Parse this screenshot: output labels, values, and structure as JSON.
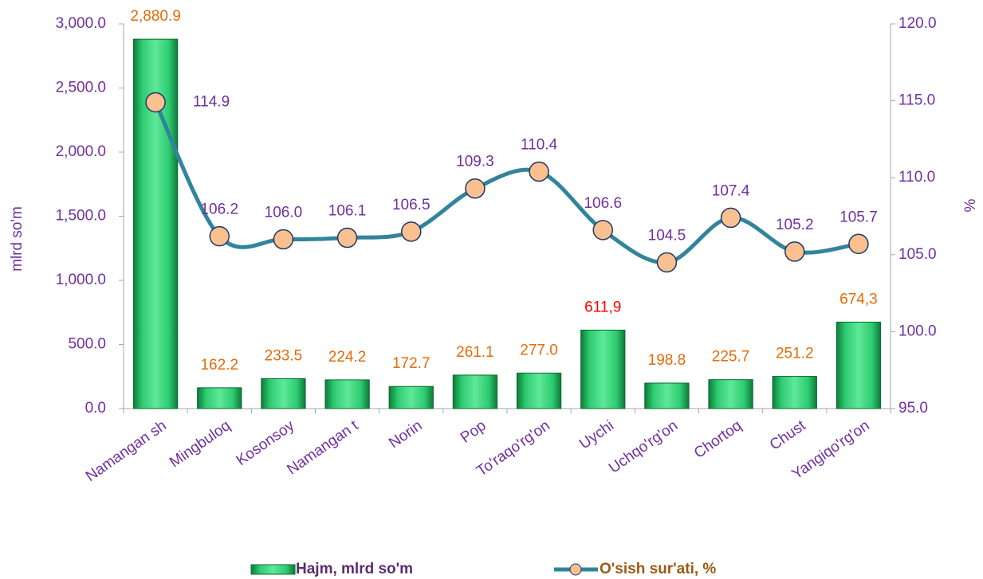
{
  "chart_data": {
    "type": "bar+line",
    "y_label": "mlrd so'm",
    "y2_label": "%",
    "categories": [
      "Namangan sh",
      "Mingbuloq",
      "Kosonsoy",
      "Namangan t",
      "Norin",
      "Pop",
      "To'raqo'rg'on",
      "Uychi",
      "Uchqo'rg'on",
      "Chortoq",
      "Chust",
      "Yangiqo'rg'on"
    ],
    "series": [
      {
        "name": "Hajm, mlrd so'm",
        "type": "bar",
        "color": "#2ecc71",
        "values": [
          2880.9,
          162.2,
          233.5,
          224.2,
          172.7,
          261.1,
          277.0,
          611.9,
          198.8,
          225.7,
          251.2,
          674.3
        ],
        "value_labels": [
          "2,880.9",
          "162.2",
          "233.5",
          "224.2",
          "172.7",
          "261.1",
          "277.0",
          "611,9",
          "198.8",
          "225.7",
          "251.2",
          "674,3"
        ],
        "value_label_colors": [
          "#e36c09",
          "#e36c09",
          "#e36c09",
          "#e36c09",
          "#e36c09",
          "#e36c09",
          "#e36c09",
          "#ff0000",
          "#e36c09",
          "#e36c09",
          "#e36c09",
          "#e36c09"
        ]
      },
      {
        "name": "O'sish sur'ati, %",
        "type": "line",
        "axis": "y2",
        "color": "#31849b",
        "marker_color": "#fac090",
        "values": [
          114.9,
          106.2,
          106.0,
          106.1,
          106.5,
          109.3,
          110.4,
          106.6,
          104.5,
          107.4,
          105.2,
          105.7
        ],
        "value_labels": [
          "114.9",
          "106.2",
          "106.0",
          "106.1",
          "106.5",
          "109.3",
          "110.4",
          "106.6",
          "104.5",
          "107.4",
          "105.2",
          "105.7"
        ]
      }
    ],
    "ylim": [
      0,
      3000
    ],
    "yticks": [
      {
        "value": 0,
        "label": "0.0"
      },
      {
        "value": 500,
        "label": "500.0"
      },
      {
        "value": 1000,
        "label": "1,000.0"
      },
      {
        "value": 1500,
        "label": "1,500.0"
      },
      {
        "value": 2000,
        "label": "2,000.0"
      },
      {
        "value": 2500,
        "label": "2,500.0"
      },
      {
        "value": 3000,
        "label": "3,000.0"
      }
    ],
    "y2lim": [
      95,
      120
    ],
    "y2ticks": [
      {
        "value": 95,
        "label": "95.0"
      },
      {
        "value": 100,
        "label": "100.0"
      },
      {
        "value": 105,
        "label": "105.0"
      },
      {
        "value": 110,
        "label": "110.0"
      },
      {
        "value": 115,
        "label": "115.0"
      },
      {
        "value": 120,
        "label": "120.0"
      }
    ],
    "legend": "bottom"
  }
}
